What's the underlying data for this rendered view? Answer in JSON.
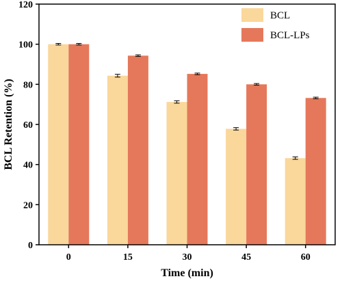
{
  "chart_data": {
    "type": "bar",
    "categories": [
      "0",
      "15",
      "30",
      "45",
      "60"
    ],
    "series": [
      {
        "name": "BCL",
        "values": [
          100,
          84.3,
          71.2,
          57.8,
          43.2
        ],
        "errors": [
          0.4,
          0.7,
          0.6,
          0.6,
          0.6
        ],
        "color": "#FAD79B"
      },
      {
        "name": "BCL-LPs",
        "values": [
          100,
          94.3,
          85.2,
          80.0,
          73.2
        ],
        "errors": [
          0.4,
          0.4,
          0.4,
          0.4,
          0.4
        ],
        "color": "#E5785A"
      }
    ],
    "xlabel": "Time (min)",
    "ylabel": "BCL Retention (%)",
    "ylim": [
      0,
      120
    ],
    "yticks": [
      0,
      20,
      40,
      60,
      80,
      100,
      120
    ],
    "legend": "top-right",
    "grid": false
  }
}
